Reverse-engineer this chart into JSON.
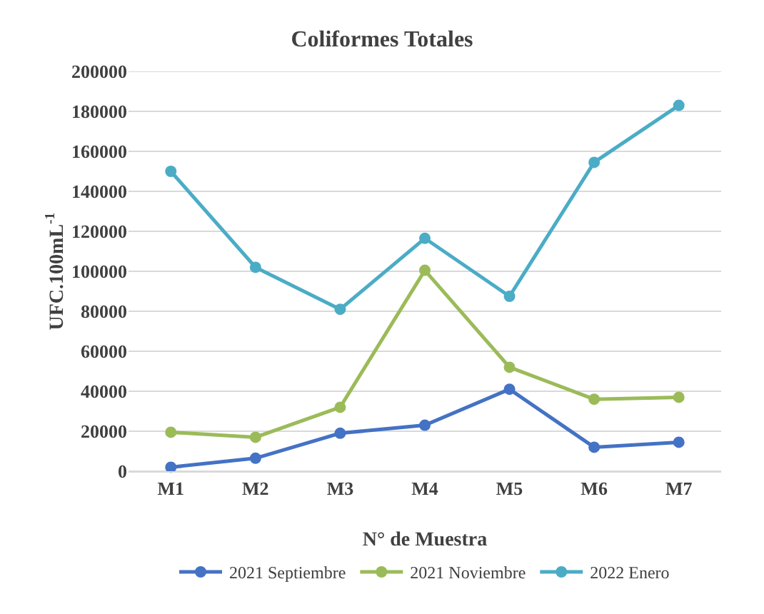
{
  "chart_data": {
    "type": "line",
    "title": "Coliformes Totales",
    "xlabel": "N° de Muestra",
    "ylabel": "UFC.100mL$^{-1}$",
    "categories": [
      "M1",
      "M2",
      "M3",
      "M4",
      "M5",
      "M6",
      "M7"
    ],
    "series": [
      {
        "name": "2021 Septiembre",
        "color": "#4472c4",
        "values": [
          2000,
          6500,
          19000,
          23000,
          41000,
          12000,
          14500
        ]
      },
      {
        "name": "2021 Noviembre",
        "color": "#9bbb59",
        "values": [
          19500,
          17000,
          32000,
          100500,
          52000,
          36000,
          37000
        ]
      },
      {
        "name": "2022 Enero",
        "color": "#4bacc6",
        "values": [
          150000,
          102000,
          81000,
          116500,
          87500,
          154500,
          183000
        ]
      }
    ],
    "ylim": [
      0,
      200000
    ],
    "yticks": [
      0,
      20000,
      40000,
      60000,
      80000,
      100000,
      120000,
      140000,
      160000,
      180000,
      200000
    ],
    "grid": "y",
    "legend": "bottom",
    "marker": "circle",
    "line_style": "solid"
  }
}
